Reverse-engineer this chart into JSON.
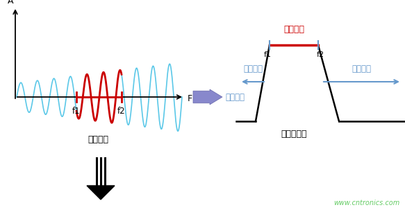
{
  "bg_color": "#ffffff",
  "sine_color": "#5bc8e8",
  "axis_color": "#000000",
  "red_color": "#cc0000",
  "blue_color": "#6699cc",
  "filter_line_color": "#000000",
  "label_orig": "原始信号",
  "label_filter": "滤波器响应",
  "label_f1": "f1",
  "label_f2": "f2",
  "label_working": "工作频段",
  "label_suppress_left": "抑制频段",
  "label_suppress_right": "抑制频段",
  "label_suppress_mid": "抑制频段",
  "label_A": "A",
  "label_F": "F",
  "watermark": "www.cntronics.com",
  "watermark_color": "#66cc66",
  "down_arrow_color": "#000000",
  "big_arrow_color": "#8888cc"
}
